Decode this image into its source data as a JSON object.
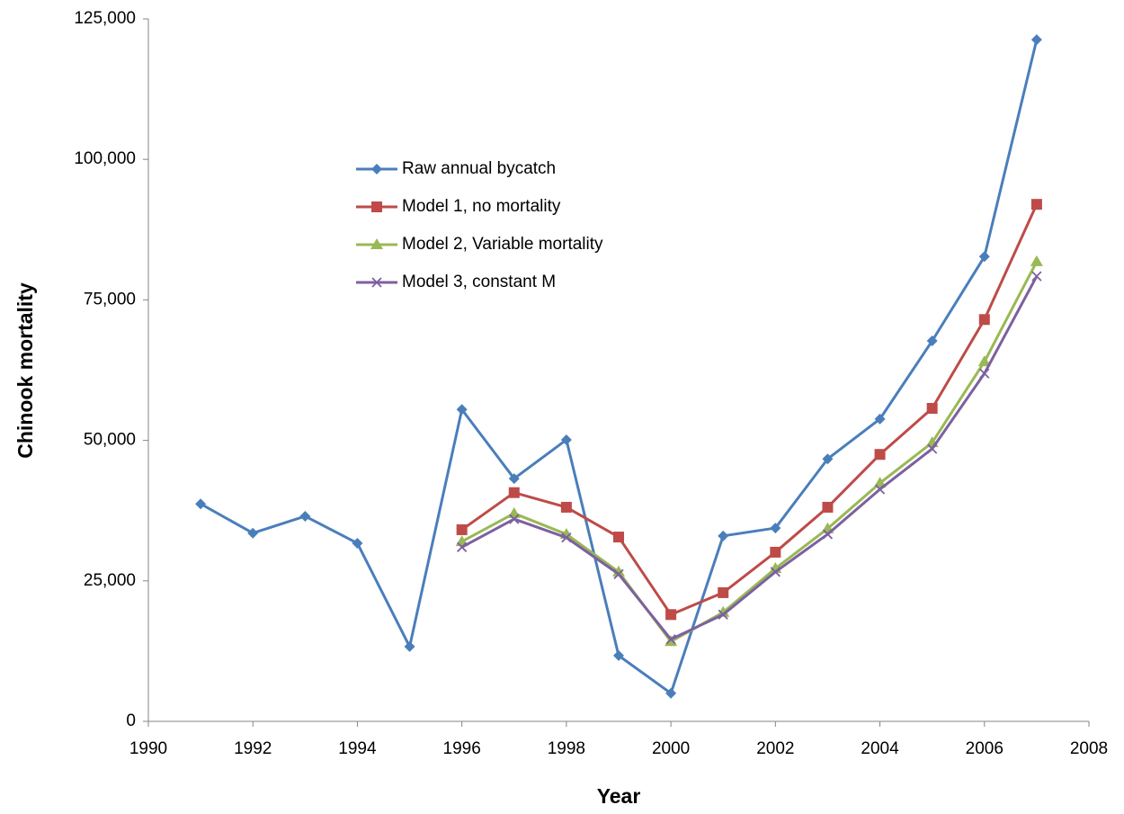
{
  "chart_data": {
    "type": "line",
    "x_label": "Year",
    "y_label": "Chinook mortality",
    "x": [
      1991,
      1992,
      1993,
      1994,
      1995,
      1996,
      1997,
      1998,
      1999,
      2000,
      2001,
      2002,
      2003,
      2004,
      2005,
      2006,
      2007
    ],
    "series": [
      {
        "name": "Raw annual bycatch",
        "color": "#4a7ebb",
        "marker": "diamond",
        "values": [
          38700,
          33500,
          36500,
          31700,
          13300,
          55500,
          43200,
          50100,
          11700,
          5000,
          33000,
          34400,
          46700,
          53800,
          67700,
          82700,
          121300
        ]
      },
      {
        "name": "Model 1, no mortality",
        "color": "#be4b48",
        "marker": "square",
        "values": [
          null,
          null,
          null,
          null,
          null,
          34100,
          40700,
          38100,
          32800,
          19000,
          22900,
          30100,
          38100,
          47500,
          55700,
          71500,
          92000
        ]
      },
      {
        "name": "Model 2, Variable mortality",
        "color": "#98b954",
        "marker": "triangle",
        "values": [
          null,
          null,
          null,
          null,
          null,
          32000,
          37000,
          33300,
          26600,
          14200,
          19400,
          27200,
          34300,
          42400,
          49600,
          64000,
          81800
        ]
      },
      {
        "name": "Model 3, constant M",
        "color": "#7d60a0",
        "marker": "x",
        "values": [
          null,
          null,
          null,
          null,
          null,
          31000,
          36000,
          32700,
          26200,
          14600,
          19000,
          26600,
          33300,
          41300,
          48500,
          61900,
          79200
        ]
      }
    ],
    "xlim": [
      1990,
      2008
    ],
    "xticks": [
      1990,
      1992,
      1994,
      1996,
      1998,
      2000,
      2002,
      2004,
      2006,
      2008
    ],
    "ylim": [
      0,
      125000
    ],
    "yticks": [
      0,
      {
        "value": 25000,
        "label": "25,000"
      },
      {
        "value": 50000,
        "label": "50,000"
      },
      {
        "value": 75000,
        "label": "75,000"
      },
      {
        "value": 100000,
        "label": "100,000"
      },
      {
        "value": 125000,
        "label": "125,000"
      }
    ],
    "grid": false
  }
}
